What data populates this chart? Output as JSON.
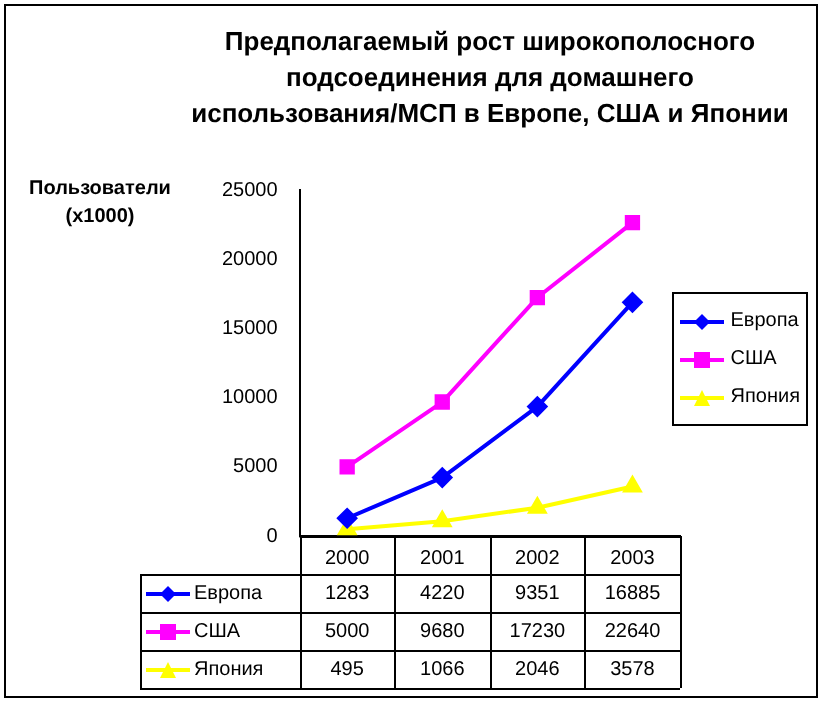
{
  "chart_data": {
    "type": "line",
    "title": "Предполагаемый рост широкополосного подсоединения для домашнего использования/МСП в Европе, США и Японии",
    "ylabel": "Пользователи (x1000)",
    "categories": [
      "2000",
      "2001",
      "2002",
      "2003"
    ],
    "series": [
      {
        "name": "Европа",
        "color": "#0000ff",
        "marker": "diamond",
        "values": [
          1283,
          4220,
          9351,
          16885
        ]
      },
      {
        "name": "США",
        "color": "#ff00ff",
        "marker": "square",
        "values": [
          5000,
          9680,
          17230,
          22640
        ]
      },
      {
        "name": "Япония",
        "color": "#ffff00",
        "marker": "triangle",
        "values": [
          495,
          1066,
          2046,
          3578
        ]
      }
    ],
    "ylim": [
      0,
      25000
    ],
    "yticks": [
      0,
      5000,
      10000,
      15000,
      20000,
      25000
    ],
    "grid": false,
    "legend": "right",
    "data_labels": true,
    "line_style": "solid"
  }
}
